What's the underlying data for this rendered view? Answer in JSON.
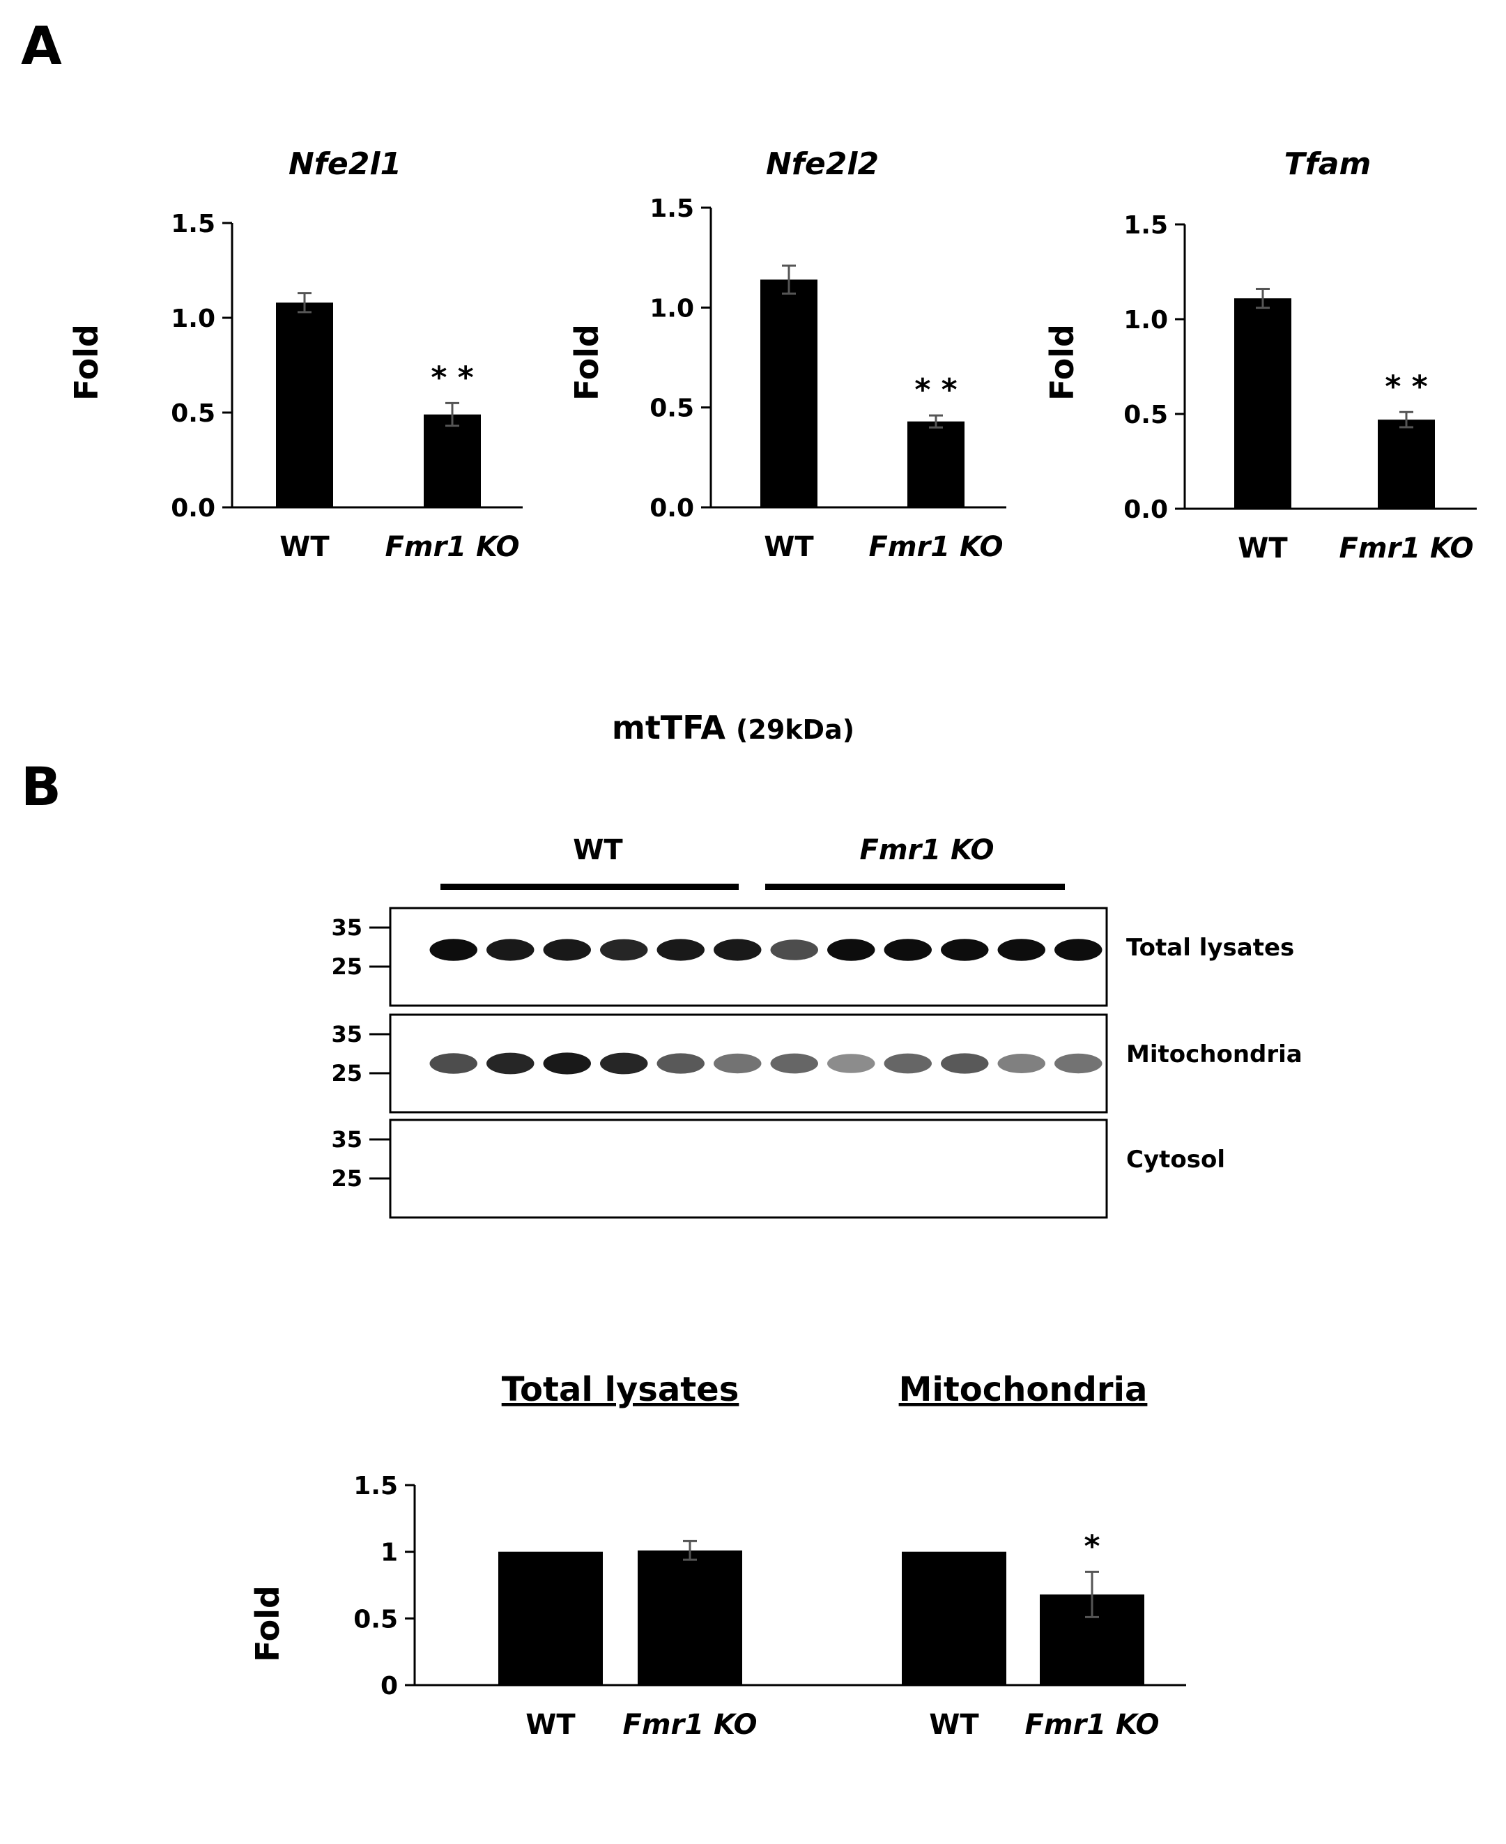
{
  "panel_a_letter": "A",
  "panel_b_letter": "B",
  "chart_data": [
    {
      "type": "bar",
      "title": "Nfe2l1",
      "ylabel": "Fold",
      "categories": [
        "WT",
        "Fmr1 KO"
      ],
      "values": [
        1.08,
        0.49
      ],
      "errors": [
        0.05,
        0.06
      ],
      "significance": [
        "",
        "**"
      ],
      "ylim": [
        0,
        1.5
      ],
      "yticks": [
        "0.0",
        "0.5",
        "1.0",
        "1.5"
      ]
    },
    {
      "type": "bar",
      "title": "Nfe2l2",
      "ylabel": "Fold",
      "categories": [
        "WT",
        "Fmr1 KO"
      ],
      "values": [
        1.14,
        0.43
      ],
      "errors": [
        0.07,
        0.03
      ],
      "significance": [
        "",
        "**"
      ],
      "ylim": [
        0,
        1.5
      ],
      "yticks": [
        "0.0",
        "0.5",
        "1.0",
        "1.5"
      ]
    },
    {
      "type": "bar",
      "title": "Tfam",
      "ylabel": "Fold",
      "categories": [
        "WT",
        "Fmr1 KO"
      ],
      "values": [
        1.11,
        0.47
      ],
      "errors": [
        0.05,
        0.04
      ],
      "significance": [
        "",
        "**"
      ],
      "ylim": [
        0,
        1.5
      ],
      "yticks": [
        "0.0",
        "0.5",
        "1.0",
        "1.5"
      ]
    },
    {
      "type": "bar",
      "ylabel": "Fold",
      "group_headers": [
        "Total lysates",
        "Mitochondria"
      ],
      "categories": [
        "WT",
        "Fmr1 KO",
        "WT",
        "Fmr1 KO"
      ],
      "values": [
        1.0,
        1.01,
        1.0,
        0.68
      ],
      "errors": [
        0.0,
        0.07,
        0.0,
        0.17
      ],
      "significance": [
        "",
        "",
        "",
        "*"
      ],
      "ylim": [
        0,
        1.5
      ],
      "yticks": [
        "0",
        "0.5",
        "1",
        "1.5"
      ]
    }
  ],
  "blot": {
    "title": "mtTFA",
    "title_suffix": "(29kDa)",
    "groups": [
      "WT",
      "Fmr1 KO"
    ],
    "lanes_per_group": 6,
    "marker_labels": [
      "35",
      "25"
    ],
    "rows": [
      {
        "fraction": "Total lysates",
        "intensities": [
          0.95,
          0.9,
          0.9,
          0.85,
          0.9,
          0.9,
          0.7,
          0.95,
          0.95,
          0.95,
          0.95,
          0.95
        ]
      },
      {
        "fraction": "Mitochondria",
        "intensities": [
          0.7,
          0.85,
          0.9,
          0.85,
          0.65,
          0.55,
          0.6,
          0.45,
          0.6,
          0.65,
          0.5,
          0.55
        ]
      },
      {
        "fraction": "Cytosol",
        "intensities": [
          0,
          0,
          0,
          0,
          0,
          0,
          0,
          0,
          0,
          0,
          0,
          0
        ]
      }
    ]
  }
}
